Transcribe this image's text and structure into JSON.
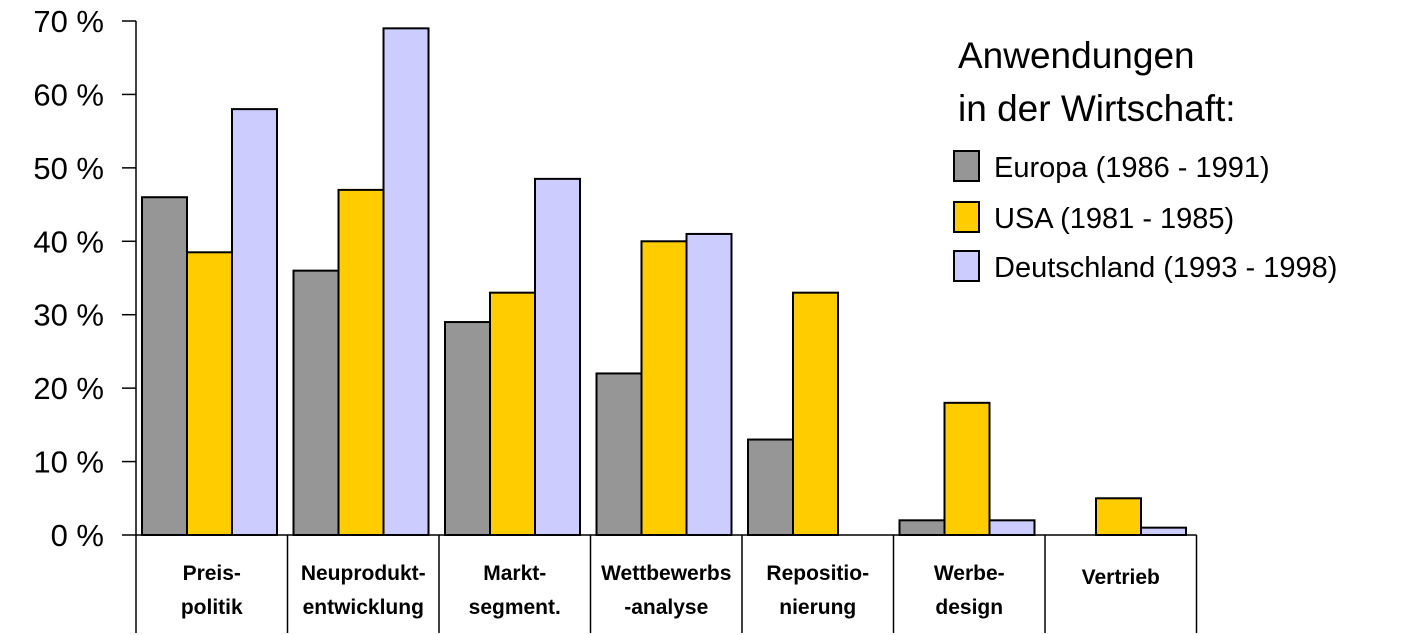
{
  "chart_data": {
    "type": "bar",
    "title": "",
    "xlabel": "",
    "ylabel": "",
    "ylim": [
      0,
      70
    ],
    "ytick_labels": [
      "0 %",
      "10 %",
      "20 %",
      "30 %",
      "40 %",
      "50 %",
      "60 %",
      "70 %"
    ],
    "ytick_values": [
      0,
      10,
      20,
      30,
      40,
      50,
      60,
      70
    ],
    "categories": [
      [
        "Preis-",
        "politik"
      ],
      [
        "Neuprodukt-",
        "entwicklung"
      ],
      [
        "Markt-",
        "segment."
      ],
      [
        "Wettbewerbs",
        "-analyse"
      ],
      [
        "Repositio-",
        "nierung"
      ],
      [
        "Werbe-",
        "design"
      ],
      [
        "Vertrieb"
      ]
    ],
    "series": [
      {
        "name": "Europa (1986 - 1991)",
        "color": "#969696",
        "values": [
          46,
          36,
          29,
          22,
          13,
          2,
          0
        ]
      },
      {
        "name": "USA (1981 - 1985)",
        "color": "#ffcc00",
        "values": [
          38.5,
          47,
          33,
          40,
          33,
          18,
          5
        ]
      },
      {
        "name": "Deutschland (1993 - 1998)",
        "color": "#ccccff",
        "values": [
          58,
          69,
          48.5,
          41,
          null,
          2,
          1
        ]
      }
    ],
    "legend": {
      "title_lines": [
        "Anwendungen",
        "in der Wirtschaft:"
      ],
      "placement": "top-right"
    },
    "grid": false
  }
}
